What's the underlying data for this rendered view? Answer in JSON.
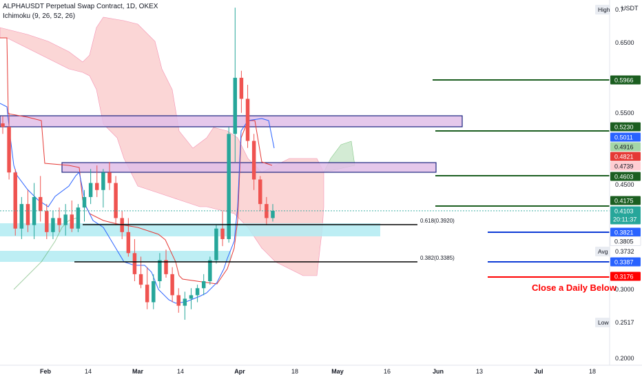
{
  "header": {
    "title": "ALPHAUSDT Perpetual Swap Contract, 1D, OKEX",
    "indicator": "Ichimoku (9, 26, 52, 26)"
  },
  "axis": {
    "currency": "USDT",
    "y_ticks": [
      "0.6500",
      "0.5500",
      "0.4500",
      "0.3000",
      "0.2000"
    ],
    "x_ticks": [
      "Feb",
      "14",
      "Mar",
      "14",
      "Apr",
      "18",
      "May",
      "16",
      "Jun",
      "13",
      "Jul",
      "18"
    ]
  },
  "price_badges": [
    {
      "id": "badge-high",
      "label": "High",
      "value": "0.7",
      "kind": "hl"
    },
    {
      "id": "badge-level-05966",
      "value": "0.5966",
      "color": "#1b5e20"
    },
    {
      "id": "badge-level-05230",
      "value": "0.5230",
      "color": "#1b5e20"
    },
    {
      "id": "badge-ichimoku-05011",
      "value": "0.5011",
      "color": "#2962ff"
    },
    {
      "id": "badge-ichimoku-04916",
      "value": "0.4916",
      "color": "#a5d6a7"
    },
    {
      "id": "badge-ichimoku-04821",
      "value": "0.4821",
      "color": "#e53935"
    },
    {
      "id": "badge-ichimoku-04739",
      "value": "0.4739",
      "color": "#ffcdd2"
    },
    {
      "id": "badge-level-04603",
      "value": "0.4603",
      "color": "#1b5e20"
    },
    {
      "id": "badge-level-04175",
      "value": "0.4175",
      "color": "#1b5e20"
    },
    {
      "id": "badge-last-price",
      "value": "0.4103",
      "countdown": "20:11:37",
      "color": "#26a69a"
    },
    {
      "id": "badge-level-03821",
      "value": "0.3821",
      "color": "#2962ff"
    },
    {
      "id": "badge-ichimoku-03805",
      "value": "0.3805",
      "color": "#ffffff"
    },
    {
      "id": "badge-avg",
      "label": "Avg",
      "value": "0.3732",
      "kind": "avg"
    },
    {
      "id": "badge-level-03387",
      "value": "0.3387",
      "color": "#2962ff"
    },
    {
      "id": "badge-level-03176",
      "value": "0.3176",
      "color": "#ff0000"
    },
    {
      "id": "badge-low",
      "label": "Low",
      "value": "0.2517",
      "kind": "hl"
    }
  ],
  "annotations": {
    "fib_618": "0.618(0.3920)",
    "fib_382": "0.382(0.3385)",
    "stop_note": "Close a Daily Below"
  },
  "colors": {
    "up": "#26a69a",
    "down": "#ef5350",
    "tenkan": "#2962ff",
    "kijun": "#e53935",
    "cloud_bear": "#f8bbbb",
    "cloud_bull": "#c8e6c9",
    "resistance_box": "#e1bee7",
    "support_box": "#b2ebf2",
    "target_line": "#1b5e20",
    "support_line": "#0d3bd6",
    "stop_line": "#ff0000"
  },
  "chart_data": {
    "type": "candlestick",
    "symbol": "ALPHAUSDT",
    "timeframe": "1D",
    "ylim": [
      0.2,
      0.7
    ],
    "ohlc_sample": [
      {
        "o": 0.535,
        "h": 0.545,
        "l": 0.52,
        "c": 0.53
      },
      {
        "o": 0.53,
        "h": 0.55,
        "l": 0.455,
        "c": 0.465
      },
      {
        "o": 0.465,
        "h": 0.47,
        "l": 0.375,
        "c": 0.385
      },
      {
        "o": 0.385,
        "h": 0.43,
        "l": 0.37,
        "c": 0.42
      },
      {
        "o": 0.42,
        "h": 0.44,
        "l": 0.38,
        "c": 0.39
      },
      {
        "o": 0.39,
        "h": 0.45,
        "l": 0.37,
        "c": 0.43
      },
      {
        "o": 0.43,
        "h": 0.46,
        "l": 0.395,
        "c": 0.41
      },
      {
        "o": 0.41,
        "h": 0.42,
        "l": 0.37,
        "c": 0.38
      },
      {
        "o": 0.38,
        "h": 0.41,
        "l": 0.37,
        "c": 0.4
      },
      {
        "o": 0.4,
        "h": 0.415,
        "l": 0.38,
        "c": 0.39
      },
      {
        "o": 0.39,
        "h": 0.42,
        "l": 0.375,
        "c": 0.405
      },
      {
        "o": 0.405,
        "h": 0.425,
        "l": 0.38,
        "c": 0.385
      },
      {
        "o": 0.385,
        "h": 0.42,
        "l": 0.38,
        "c": 0.415
      },
      {
        "o": 0.415,
        "h": 0.44,
        "l": 0.395,
        "c": 0.43
      },
      {
        "o": 0.43,
        "h": 0.47,
        "l": 0.42,
        "c": 0.45
      },
      {
        "o": 0.45,
        "h": 0.475,
        "l": 0.43,
        "c": 0.44
      },
      {
        "o": 0.44,
        "h": 0.47,
        "l": 0.415,
        "c": 0.465
      },
      {
        "o": 0.465,
        "h": 0.48,
        "l": 0.44,
        "c": 0.45
      },
      {
        "o": 0.45,
        "h": 0.46,
        "l": 0.39,
        "c": 0.4
      },
      {
        "o": 0.4,
        "h": 0.41,
        "l": 0.37,
        "c": 0.38
      },
      {
        "o": 0.38,
        "h": 0.4,
        "l": 0.345,
        "c": 0.35
      },
      {
        "o": 0.35,
        "h": 0.37,
        "l": 0.31,
        "c": 0.32
      },
      {
        "o": 0.32,
        "h": 0.345,
        "l": 0.3,
        "c": 0.305
      },
      {
        "o": 0.305,
        "h": 0.33,
        "l": 0.27,
        "c": 0.28
      },
      {
        "o": 0.28,
        "h": 0.32,
        "l": 0.27,
        "c": 0.31
      },
      {
        "o": 0.31,
        "h": 0.35,
        "l": 0.3,
        "c": 0.34
      },
      {
        "o": 0.34,
        "h": 0.355,
        "l": 0.315,
        "c": 0.32
      },
      {
        "o": 0.32,
        "h": 0.33,
        "l": 0.28,
        "c": 0.29
      },
      {
        "o": 0.29,
        "h": 0.3,
        "l": 0.265,
        "c": 0.275
      },
      {
        "o": 0.275,
        "h": 0.295,
        "l": 0.255,
        "c": 0.285
      },
      {
        "o": 0.285,
        "h": 0.3,
        "l": 0.27,
        "c": 0.29
      },
      {
        "o": 0.29,
        "h": 0.305,
        "l": 0.28,
        "c": 0.3
      },
      {
        "o": 0.3,
        "h": 0.32,
        "l": 0.29,
        "c": 0.31
      },
      {
        "o": 0.31,
        "h": 0.345,
        "l": 0.305,
        "c": 0.34
      },
      {
        "o": 0.34,
        "h": 0.39,
        "l": 0.335,
        "c": 0.385
      },
      {
        "o": 0.385,
        "h": 0.41,
        "l": 0.36,
        "c": 0.37
      },
      {
        "o": 0.37,
        "h": 0.53,
        "l": 0.365,
        "c": 0.52
      },
      {
        "o": 0.52,
        "h": 0.7,
        "l": 0.48,
        "c": 0.6
      },
      {
        "o": 0.6,
        "h": 0.61,
        "l": 0.55,
        "c": 0.57
      },
      {
        "o": 0.57,
        "h": 0.59,
        "l": 0.5,
        "c": 0.51
      },
      {
        "o": 0.51,
        "h": 0.52,
        "l": 0.44,
        "c": 0.455
      },
      {
        "o": 0.455,
        "h": 0.46,
        "l": 0.41,
        "c": 0.42
      },
      {
        "o": 0.42,
        "h": 0.43,
        "l": 0.39,
        "c": 0.4
      },
      {
        "o": 0.4,
        "h": 0.42,
        "l": 0.395,
        "c": 0.4103
      }
    ],
    "levels": [
      0.5966,
      0.523,
      0.4603,
      0.4175,
      0.3821,
      0.3387,
      0.3176
    ],
    "fib_levels": [
      {
        "label": "0.618",
        "value": 0.392
      },
      {
        "label": "0.382",
        "value": 0.3385
      }
    ],
    "last_price": 0.4103,
    "high": "0.7",
    "low": 0.2517,
    "avg": 0.3732
  }
}
